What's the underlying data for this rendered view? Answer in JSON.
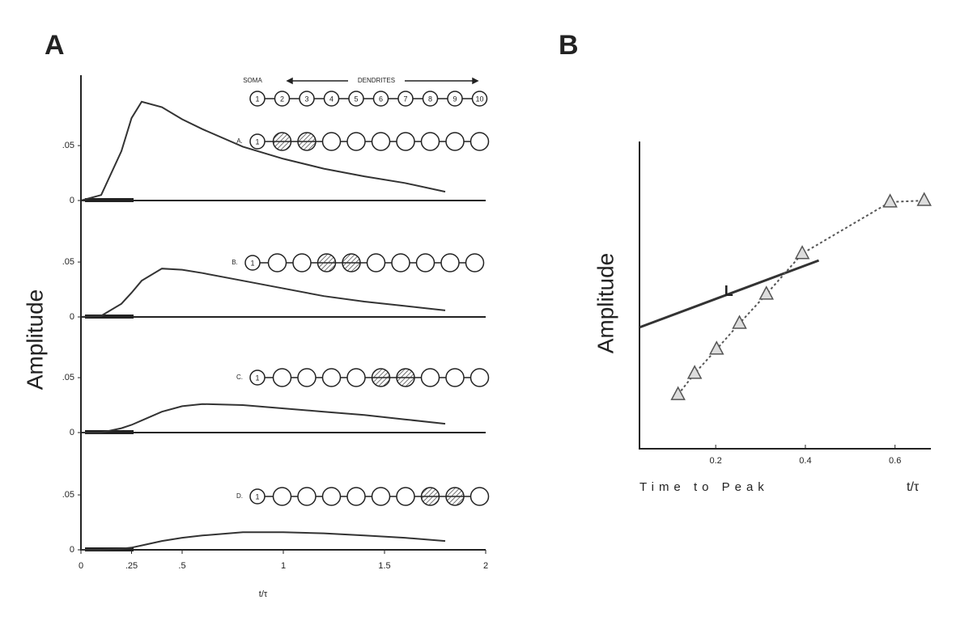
{
  "panel_a": {
    "label": "A",
    "ylabel": "Amplitude"
  },
  "panel_b": {
    "label": "B"
  },
  "compartments": {
    "soma": "SOMA",
    "dendrites": "DENDRITES",
    "numbers": [
      "1",
      "2",
      "3",
      "4",
      "5",
      "6",
      "7",
      "8",
      "9",
      "10"
    ],
    "rows": [
      {
        "label": "A.",
        "stimulated": [
          2,
          3
        ]
      },
      {
        "label": "B.",
        "stimulated": [
          4,
          5
        ]
      },
      {
        "label": "C.",
        "stimulated": [
          6,
          7
        ]
      },
      {
        "label": "D.",
        "stimulated": [
          8,
          9
        ]
      }
    ]
  },
  "chart_data": [
    {
      "type": "line",
      "x": [
        0,
        0.1,
        0.2,
        0.25,
        0.3,
        0.4,
        0.5,
        0.6,
        0.8,
        1.0,
        1.2,
        1.4,
        1.6,
        1.8
      ],
      "values": [
        0,
        0.005,
        0.045,
        0.075,
        0.09,
        0.085,
        0.074,
        0.065,
        0.049,
        0.038,
        0.029,
        0.022,
        0.016,
        0.008
      ],
      "xlim": [
        0,
        2
      ],
      "ylim": [
        0,
        0.12
      ],
      "yticks": [
        0,
        {
          "value": 0.05,
          "label": ".05"
        }
      ],
      "color": "#333"
    },
    {
      "type": "line",
      "x": [
        0,
        0.1,
        0.2,
        0.25,
        0.3,
        0.4,
        0.5,
        0.6,
        0.8,
        1.0,
        1.2,
        1.4,
        1.6,
        1.8
      ],
      "values": [
        0,
        0.001,
        0.012,
        0.022,
        0.033,
        0.044,
        0.043,
        0.04,
        0.033,
        0.026,
        0.019,
        0.014,
        0.01,
        0.006
      ],
      "xlim": [
        0,
        2
      ],
      "ylim": [
        0,
        0.12
      ],
      "yticks": [
        0,
        {
          "value": 0.05,
          "label": ".05"
        }
      ],
      "color": "#333"
    },
    {
      "type": "line",
      "x": [
        0,
        0.1,
        0.2,
        0.25,
        0.3,
        0.4,
        0.5,
        0.6,
        0.8,
        1.0,
        1.2,
        1.4,
        1.6,
        1.8
      ],
      "values": [
        0,
        0,
        0.004,
        0.007,
        0.011,
        0.019,
        0.024,
        0.026,
        0.025,
        0.022,
        0.019,
        0.016,
        0.012,
        0.008
      ],
      "xlim": [
        0,
        2
      ],
      "ylim": [
        0,
        0.12
      ],
      "yticks": [
        0,
        {
          "value": 0.05,
          "label": ".05"
        }
      ],
      "color": "#333"
    },
    {
      "type": "line",
      "x": [
        0,
        0.1,
        0.2,
        0.25,
        0.3,
        0.4,
        0.5,
        0.6,
        0.8,
        1.0,
        1.2,
        1.4,
        1.6,
        1.8
      ],
      "values": [
        0,
        0,
        0.001,
        0.002,
        0.004,
        0.008,
        0.011,
        0.013,
        0.016,
        0.016,
        0.015,
        0.013,
        0.011,
        0.008
      ],
      "xlim": [
        0,
        2
      ],
      "ylim": [
        0,
        0.12
      ],
      "yticks": [
        0,
        {
          "value": 0.05,
          "label": ".05"
        }
      ],
      "xticks": [
        0,
        {
          "value": 0.25,
          "label": ".25"
        },
        {
          "value": 0.5,
          "label": ".5"
        },
        1,
        1.5,
        2
      ],
      "xlabel": "t/τ",
      "color": "#333"
    },
    {
      "type": "scatter",
      "xlim": [
        0.03,
        0.68
      ],
      "ylim": [
        0,
        1
      ],
      "xticks": [
        0.2,
        0.4,
        0.6
      ],
      "xlabel": "Time to Peak",
      "xunit": "t/τ",
      "ylabel": "Amplitude",
      "series": [
        {
          "name": "L",
          "style": "line",
          "color": "#333",
          "x": [
            0.03,
            0.43
          ],
          "values": [
            0.395,
            0.613
          ]
        },
        {
          "style": "triangles",
          "color": "#555",
          "x": [
            0.116,
            0.153,
            0.202,
            0.253,
            0.313,
            0.393,
            0.589,
            0.665
          ],
          "values": [
            0.176,
            0.245,
            0.324,
            0.408,
            0.503,
            0.635,
            0.803,
            0.808
          ]
        }
      ]
    }
  ]
}
